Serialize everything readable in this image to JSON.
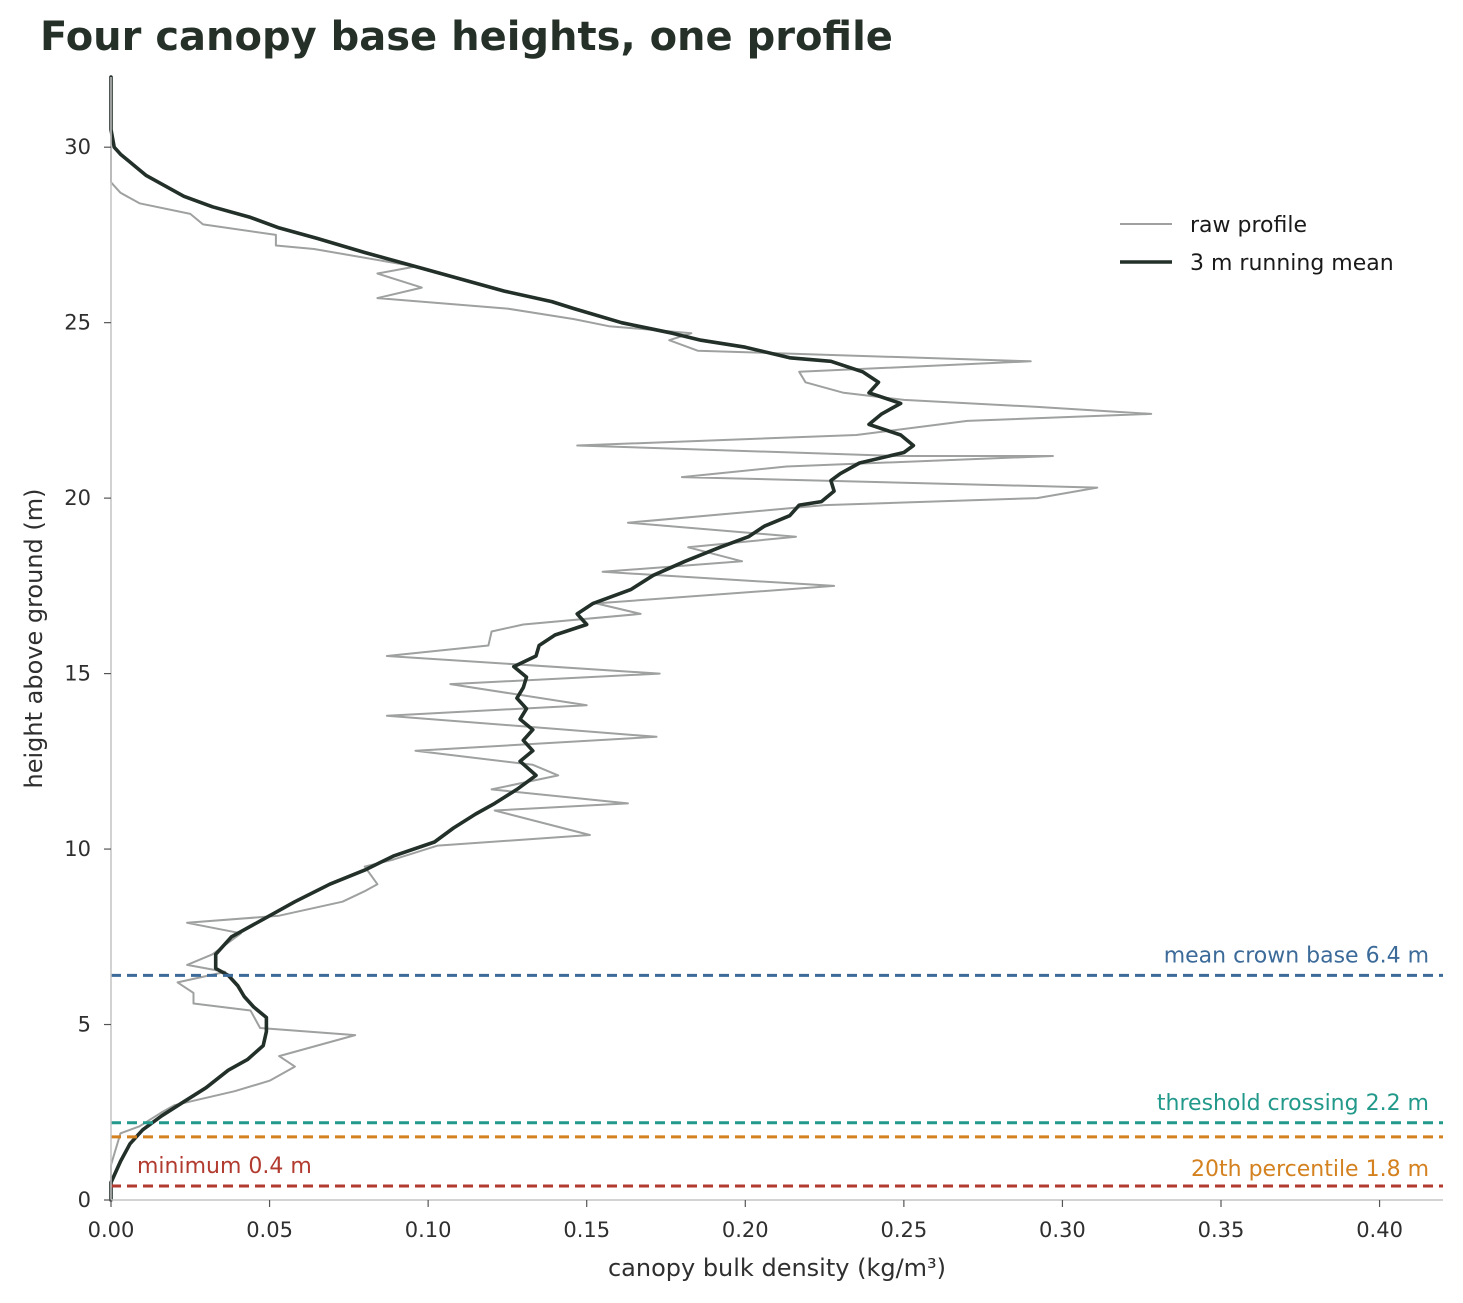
{
  "chart_data": {
    "type": "line",
    "title": "Four canopy base heights, one profile",
    "xlabel": "canopy bulk density  (kg/m³)",
    "ylabel": "height above ground  (m)",
    "xlim": [
      0,
      0.42
    ],
    "ylim": [
      0,
      32
    ],
    "x_ticks": [
      0.0,
      0.05,
      0.1,
      0.15,
      0.2,
      0.25,
      0.3,
      0.35,
      0.4
    ],
    "x_tick_labels": [
      "0.00",
      "0.05",
      "0.10",
      "0.15",
      "0.20",
      "0.25",
      "0.30",
      "0.35",
      "0.40"
    ],
    "y_ticks": [
      0,
      5,
      10,
      15,
      20,
      25,
      30
    ],
    "y_tick_labels": [
      "0",
      "5",
      "10",
      "15",
      "20",
      "25",
      "30"
    ],
    "grid": false,
    "legend": {
      "position": "top-right"
    },
    "series": [
      {
        "name": "raw profile",
        "color": "#9ea19f",
        "points": [
          [
            0.0,
            32.0
          ],
          [
            0.0,
            29.0
          ],
          [
            0.003,
            28.7
          ],
          [
            0.009,
            28.4
          ],
          [
            0.025,
            28.1
          ],
          [
            0.029,
            27.8
          ],
          [
            0.052,
            27.5
          ],
          [
            0.052,
            27.2
          ],
          [
            0.064,
            27.1
          ],
          [
            0.096,
            26.6
          ],
          [
            0.084,
            26.4
          ],
          [
            0.098,
            26.0
          ],
          [
            0.084,
            25.7
          ],
          [
            0.125,
            25.4
          ],
          [
            0.146,
            25.1
          ],
          [
            0.157,
            24.9
          ],
          [
            0.183,
            24.7
          ],
          [
            0.176,
            24.5
          ],
          [
            0.185,
            24.2
          ],
          [
            0.29,
            23.9
          ],
          [
            0.217,
            23.6
          ],
          [
            0.219,
            23.3
          ],
          [
            0.231,
            23.0
          ],
          [
            0.25,
            22.8
          ],
          [
            0.292,
            22.6
          ],
          [
            0.328,
            22.4
          ],
          [
            0.27,
            22.2
          ],
          [
            0.235,
            21.8
          ],
          [
            0.147,
            21.5
          ],
          [
            0.248,
            21.2
          ],
          [
            0.297,
            21.2
          ],
          [
            0.213,
            20.9
          ],
          [
            0.18,
            20.6
          ],
          [
            0.311,
            20.3
          ],
          [
            0.292,
            20.0
          ],
          [
            0.225,
            19.8
          ],
          [
            0.2,
            19.6
          ],
          [
            0.163,
            19.3
          ],
          [
            0.216,
            18.9
          ],
          [
            0.182,
            18.6
          ],
          [
            0.199,
            18.2
          ],
          [
            0.155,
            17.9
          ],
          [
            0.228,
            17.5
          ],
          [
            0.153,
            17.0
          ],
          [
            0.167,
            16.7
          ],
          [
            0.13,
            16.4
          ],
          [
            0.12,
            16.2
          ],
          [
            0.119,
            15.8
          ],
          [
            0.087,
            15.5
          ],
          [
            0.173,
            15.0
          ],
          [
            0.107,
            14.7
          ],
          [
            0.15,
            14.1
          ],
          [
            0.087,
            13.8
          ],
          [
            0.172,
            13.2
          ],
          [
            0.096,
            12.8
          ],
          [
            0.133,
            12.4
          ],
          [
            0.141,
            12.1
          ],
          [
            0.12,
            11.7
          ],
          [
            0.163,
            11.3
          ],
          [
            0.121,
            11.1
          ],
          [
            0.151,
            10.4
          ],
          [
            0.103,
            10.1
          ],
          [
            0.089,
            9.7
          ],
          [
            0.08,
            9.5
          ],
          [
            0.084,
            9.0
          ],
          [
            0.08,
            8.8
          ],
          [
            0.073,
            8.5
          ],
          [
            0.053,
            8.1
          ],
          [
            0.024,
            7.9
          ],
          [
            0.041,
            7.6
          ],
          [
            0.032,
            7.0
          ],
          [
            0.024,
            6.7
          ],
          [
            0.036,
            6.5
          ],
          [
            0.021,
            6.2
          ],
          [
            0.026,
            5.9
          ],
          [
            0.026,
            5.6
          ],
          [
            0.044,
            5.4
          ],
          [
            0.047,
            4.9
          ],
          [
            0.077,
            4.7
          ],
          [
            0.065,
            4.4
          ],
          [
            0.053,
            4.1
          ],
          [
            0.058,
            3.8
          ],
          [
            0.05,
            3.4
          ],
          [
            0.039,
            3.1
          ],
          [
            0.02,
            2.7
          ],
          [
            0.016,
            2.5
          ],
          [
            0.009,
            2.1
          ],
          [
            0.003,
            1.9
          ],
          [
            0.0,
            1.0
          ],
          [
            0.0,
            0.0
          ]
        ]
      },
      {
        "name": "3 m running mean",
        "color": "#223029",
        "points": [
          [
            0.0,
            32.0
          ],
          [
            0.0,
            30.5
          ],
          [
            0.001,
            30.0
          ],
          [
            0.003,
            29.8
          ],
          [
            0.007,
            29.5
          ],
          [
            0.011,
            29.2
          ],
          [
            0.017,
            28.9
          ],
          [
            0.023,
            28.6
          ],
          [
            0.032,
            28.3
          ],
          [
            0.044,
            28.0
          ],
          [
            0.053,
            27.7
          ],
          [
            0.065,
            27.4
          ],
          [
            0.08,
            27.0
          ],
          [
            0.1,
            26.5
          ],
          [
            0.124,
            25.9
          ],
          [
            0.139,
            25.6
          ],
          [
            0.146,
            25.4
          ],
          [
            0.161,
            25.0
          ],
          [
            0.177,
            24.7
          ],
          [
            0.186,
            24.5
          ],
          [
            0.2,
            24.3
          ],
          [
            0.214,
            24.0
          ],
          [
            0.227,
            23.9
          ],
          [
            0.237,
            23.6
          ],
          [
            0.242,
            23.3
          ],
          [
            0.239,
            23.0
          ],
          [
            0.249,
            22.7
          ],
          [
            0.243,
            22.4
          ],
          [
            0.239,
            22.1
          ],
          [
            0.249,
            21.8
          ],
          [
            0.253,
            21.5
          ],
          [
            0.25,
            21.3
          ],
          [
            0.236,
            21.0
          ],
          [
            0.23,
            20.7
          ],
          [
            0.227,
            20.5
          ],
          [
            0.228,
            20.2
          ],
          [
            0.224,
            19.9
          ],
          [
            0.217,
            19.8
          ],
          [
            0.214,
            19.5
          ],
          [
            0.206,
            19.2
          ],
          [
            0.201,
            18.9
          ],
          [
            0.192,
            18.6
          ],
          [
            0.181,
            18.2
          ],
          [
            0.171,
            17.8
          ],
          [
            0.164,
            17.4
          ],
          [
            0.152,
            17.0
          ],
          [
            0.147,
            16.7
          ],
          [
            0.15,
            16.4
          ],
          [
            0.14,
            16.1
          ],
          [
            0.135,
            15.8
          ],
          [
            0.134,
            15.5
          ],
          [
            0.127,
            15.2
          ],
          [
            0.131,
            14.9
          ],
          [
            0.13,
            14.6
          ],
          [
            0.128,
            14.3
          ],
          [
            0.131,
            14.0
          ],
          [
            0.129,
            13.7
          ],
          [
            0.133,
            13.4
          ],
          [
            0.13,
            13.1
          ],
          [
            0.133,
            12.8
          ],
          [
            0.129,
            12.5
          ],
          [
            0.134,
            12.1
          ],
          [
            0.128,
            11.7
          ],
          [
            0.121,
            11.3
          ],
          [
            0.115,
            11.0
          ],
          [
            0.108,
            10.6
          ],
          [
            0.102,
            10.2
          ],
          [
            0.089,
            9.8
          ],
          [
            0.08,
            9.4
          ],
          [
            0.069,
            9.0
          ],
          [
            0.058,
            8.5
          ],
          [
            0.048,
            8.0
          ],
          [
            0.038,
            7.5
          ],
          [
            0.033,
            7.0
          ],
          [
            0.033,
            6.6
          ],
          [
            0.037,
            6.4
          ],
          [
            0.04,
            6.1
          ],
          [
            0.042,
            5.8
          ],
          [
            0.045,
            5.5
          ],
          [
            0.049,
            5.2
          ],
          [
            0.049,
            4.8
          ],
          [
            0.048,
            4.4
          ],
          [
            0.043,
            4.0
          ],
          [
            0.037,
            3.7
          ],
          [
            0.03,
            3.2
          ],
          [
            0.023,
            2.8
          ],
          [
            0.016,
            2.4
          ],
          [
            0.01,
            2.0
          ],
          [
            0.006,
            1.6
          ],
          [
            0.003,
            1.1
          ],
          [
            0.0,
            0.5
          ],
          [
            0.0,
            0.0
          ]
        ]
      }
    ],
    "reference_lines": [
      {
        "label": "mean crown base  6.4 m",
        "y": 6.4,
        "color": "#3c6b9a",
        "label_position": "above-right"
      },
      {
        "label": "threshold crossing  2.2 m",
        "y": 2.2,
        "color": "#22998a",
        "label_position": "above-right"
      },
      {
        "label": "20th percentile  1.8 m",
        "y": 1.8,
        "color": "#d4811f",
        "label_position": "below-right"
      },
      {
        "label": "minimum  0.4 m",
        "y": 0.4,
        "color": "#b23b30",
        "label_position": "above-left"
      }
    ]
  }
}
